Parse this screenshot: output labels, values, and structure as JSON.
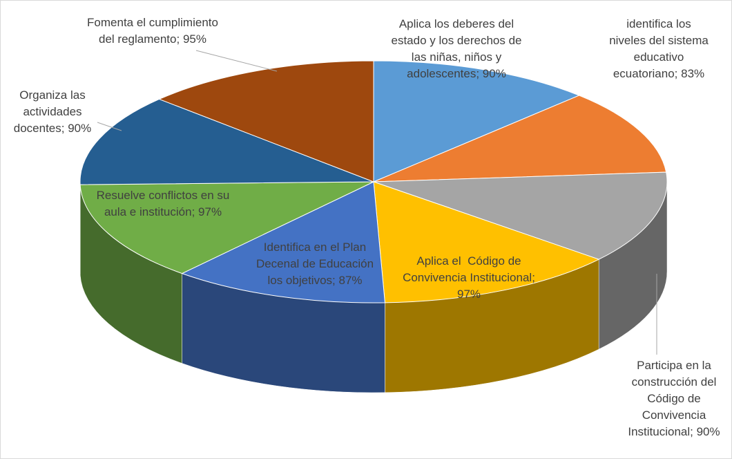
{
  "chart_data": {
    "type": "pie",
    "categories": [
      "Aplica los deberes del estado y los derechos de las niñas, niños y adolescentes",
      "identifica los niveles del sistema educativo ecuatoriano",
      "Participa en la construcción del Código de Convivencia Institucional",
      "Aplica el  Código de Convivencia Institucional",
      "Identifica en el Plan Decenal de Educación los objetivos",
      "Resuelve conflictos en su aula e institución",
      "Organiza las actividades docentes",
      "Fomenta el cumplimiento del reglamento"
    ],
    "values": [
      90,
      83,
      90,
      97,
      87,
      97,
      90,
      95
    ],
    "value_labels": [
      "90%",
      "83%",
      "90%",
      "97%",
      "87%",
      "97%",
      "90%",
      "95%"
    ],
    "label_separator": "; ",
    "colors": [
      "#5b9bd5",
      "#ed7d31",
      "#a5a5a5",
      "#ffc000",
      "#4472c4",
      "#70ad47",
      "#255e91",
      "#9e480e"
    ]
  }
}
